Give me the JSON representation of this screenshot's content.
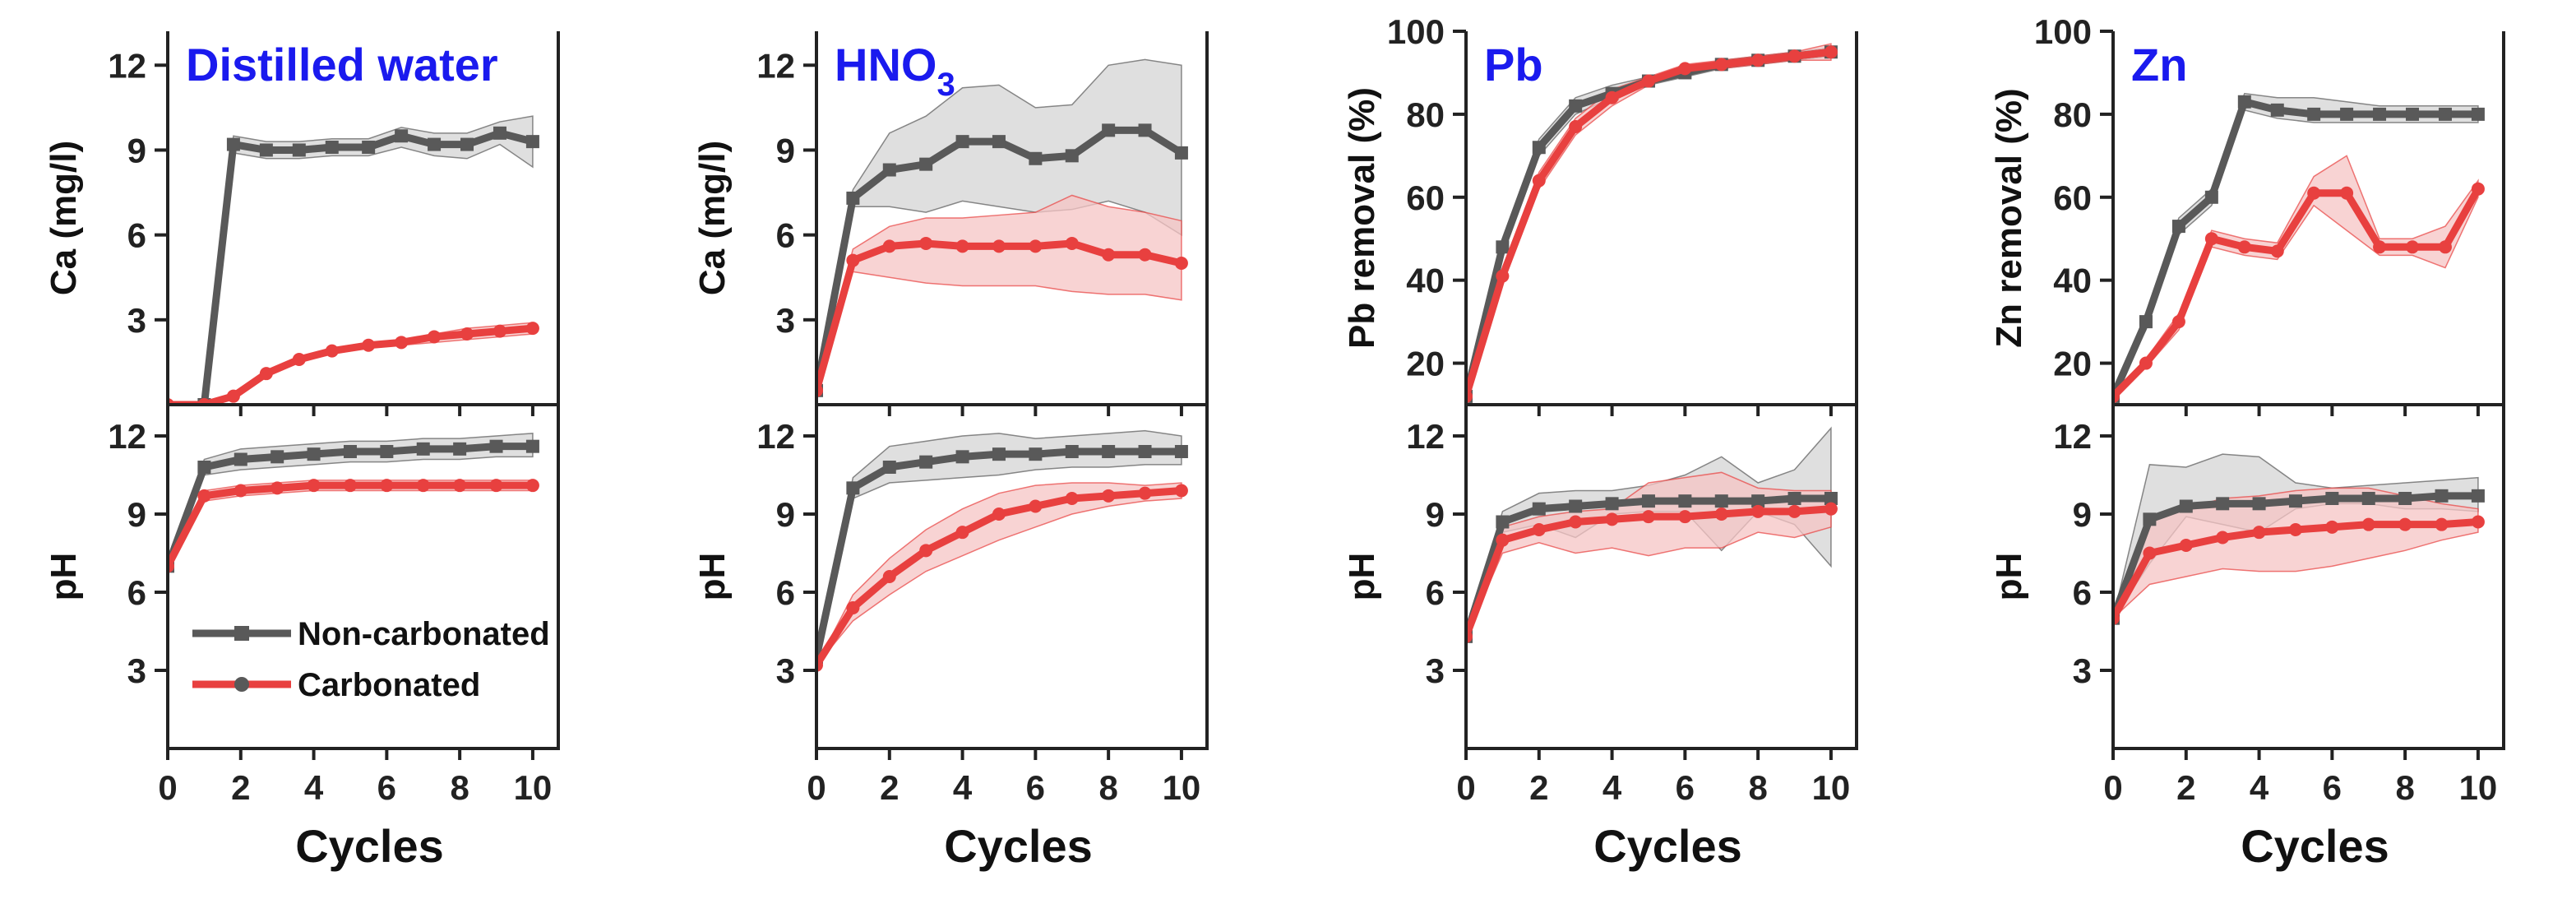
{
  "figure": {
    "xlabel": "Cycles"
  },
  "colors": {
    "noncarb": "#595959",
    "noncarb_band": "#d4d4d4",
    "carb": "#e8403f",
    "carb_band": "#f6c4c4",
    "title": "#1a1aee",
    "axis": "#222222"
  },
  "legend": {
    "items": [
      {
        "label": "Non-carbonated",
        "color": "#595959",
        "marker": "square"
      },
      {
        "label": "Carbonated",
        "color": "#e8403f",
        "marker": "circle"
      }
    ]
  },
  "chart_data": [
    {
      "id": "distilled-ca",
      "type": "line",
      "title": "Distilled water",
      "xlabel": "",
      "ylabel": "Ca (mg/l)",
      "xlim": [
        0,
        10.7
      ],
      "ylim": [
        0,
        13.2
      ],
      "yticks": [
        3,
        6,
        9,
        12
      ],
      "xticks": [
        0,
        2,
        4,
        6,
        8,
        10
      ],
      "show_xticklabels": false,
      "series": [
        {
          "name": "Non-carbonated",
          "x": [
            1,
            1.8,
            2.7,
            3.6,
            4.5,
            5.5,
            6.4,
            7.3,
            8.2,
            9.1,
            10
          ],
          "y": [
            0,
            9.2,
            9.0,
            9.0,
            9.1,
            9.1,
            9.5,
            9.2,
            9.2,
            9.6,
            9.3
          ],
          "band_low": [
            0,
            8.9,
            8.7,
            8.7,
            8.8,
            8.8,
            9.1,
            8.8,
            8.7,
            9.2,
            8.4
          ],
          "band_high": [
            0,
            9.5,
            9.3,
            9.3,
            9.4,
            9.4,
            9.8,
            9.6,
            9.6,
            10.0,
            10.2
          ]
        },
        {
          "name": "Carbonated",
          "x": [
            0,
            1,
            1.8,
            2.7,
            3.6,
            4.5,
            5.5,
            6.4,
            7.3,
            8.2,
            9.1,
            10
          ],
          "y": [
            0,
            0,
            0.3,
            1.1,
            1.6,
            1.9,
            2.1,
            2.2,
            2.4,
            2.5,
            2.6,
            2.7
          ],
          "band_low": [
            0,
            0,
            0.2,
            1.0,
            1.5,
            1.8,
            2.0,
            2.1,
            2.2,
            2.3,
            2.4,
            2.5
          ],
          "band_high": [
            0,
            0,
            0.4,
            1.2,
            1.7,
            2.0,
            2.2,
            2.3,
            2.5,
            2.7,
            2.8,
            2.9
          ]
        }
      ]
    },
    {
      "id": "distilled-ph",
      "type": "line",
      "title": "",
      "xlabel": "Cycles",
      "ylabel": "pH",
      "xlim": [
        0,
        10.7
      ],
      "ylim": [
        0,
        13.2
      ],
      "yticks": [
        3,
        6,
        9,
        12
      ],
      "xticks": [
        0,
        2,
        4,
        6,
        8,
        10
      ],
      "show_xticklabels": true,
      "series": [
        {
          "name": "Non-carbonated",
          "x": [
            0,
            1,
            2,
            3,
            4,
            5,
            6,
            7,
            8,
            9,
            10
          ],
          "y": [
            7.0,
            10.8,
            11.1,
            11.2,
            11.3,
            11.4,
            11.4,
            11.5,
            11.5,
            11.6,
            11.6
          ],
          "band_low": [
            7.0,
            10.5,
            10.7,
            10.8,
            10.9,
            11.0,
            11.0,
            11.1,
            11.1,
            11.2,
            11.2
          ],
          "band_high": [
            7.0,
            11.1,
            11.5,
            11.6,
            11.7,
            11.8,
            11.8,
            11.9,
            11.9,
            12.0,
            12.1
          ]
        },
        {
          "name": "Carbonated",
          "x": [
            0,
            1,
            2,
            3,
            4,
            5,
            6,
            7,
            8,
            9,
            10
          ],
          "y": [
            7.0,
            9.7,
            9.9,
            10.0,
            10.1,
            10.1,
            10.1,
            10.1,
            10.1,
            10.1,
            10.1
          ],
          "band_low": [
            7.0,
            9.5,
            9.7,
            9.8,
            9.9,
            9.9,
            9.9,
            9.9,
            9.9,
            9.9,
            9.9
          ],
          "band_high": [
            7.0,
            9.9,
            10.1,
            10.2,
            10.3,
            10.3,
            10.3,
            10.3,
            10.3,
            10.3,
            10.3
          ]
        }
      ]
    },
    {
      "id": "hno3-ca",
      "type": "line",
      "title": "HNO",
      "title_sub": "3",
      "xlabel": "",
      "ylabel": "Ca (mg/l)",
      "xlim": [
        0,
        10.7
      ],
      "ylim": [
        0,
        13.2
      ],
      "yticks": [
        3,
        6,
        9,
        12
      ],
      "xticks": [
        0,
        2,
        4,
        6,
        8,
        10
      ],
      "show_xticklabels": false,
      "series": [
        {
          "name": "Non-carbonated",
          "x": [
            0,
            1,
            2,
            3,
            4,
            5,
            6,
            7,
            8,
            9,
            10
          ],
          "y": [
            0.5,
            7.3,
            8.3,
            8.5,
            9.3,
            9.3,
            8.7,
            8.8,
            9.7,
            9.7,
            8.9
          ],
          "band_low": [
            0.5,
            7.0,
            7.0,
            6.8,
            7.2,
            7.0,
            6.8,
            6.9,
            7.2,
            6.8,
            6.0
          ],
          "band_high": [
            0.5,
            7.6,
            9.6,
            10.2,
            11.2,
            11.3,
            10.5,
            10.6,
            12.0,
            12.2,
            12.0
          ]
        },
        {
          "name": "Carbonated",
          "x": [
            0,
            1,
            2,
            3,
            4,
            5,
            6,
            7,
            8,
            9,
            10
          ],
          "y": [
            0.5,
            5.1,
            5.6,
            5.7,
            5.6,
            5.6,
            5.6,
            5.7,
            5.3,
            5.3,
            5.0
          ],
          "band_low": [
            0.5,
            4.7,
            4.5,
            4.3,
            4.2,
            4.2,
            4.2,
            4.0,
            3.9,
            3.9,
            3.7
          ],
          "band_high": [
            0.5,
            5.5,
            6.3,
            6.6,
            6.6,
            6.7,
            6.8,
            7.4,
            7.0,
            6.8,
            6.5
          ]
        }
      ]
    },
    {
      "id": "hno3-ph",
      "type": "line",
      "title": "",
      "xlabel": "Cycles",
      "ylabel": "pH",
      "xlim": [
        0,
        10.7
      ],
      "ylim": [
        0,
        13.2
      ],
      "yticks": [
        3,
        6,
        9,
        12
      ],
      "xticks": [
        0,
        2,
        4,
        6,
        8,
        10
      ],
      "show_xticklabels": true,
      "series": [
        {
          "name": "Non-carbonated",
          "x": [
            0,
            1,
            2,
            3,
            4,
            5,
            6,
            7,
            8,
            9,
            10
          ],
          "y": [
            3.5,
            10.0,
            10.8,
            11.0,
            11.2,
            11.3,
            11.3,
            11.4,
            11.4,
            11.4,
            11.4
          ],
          "band_low": [
            3.5,
            9.6,
            10.2,
            10.3,
            10.4,
            10.5,
            10.7,
            10.8,
            10.8,
            10.9,
            10.9
          ],
          "band_high": [
            3.5,
            10.4,
            11.6,
            11.8,
            12.0,
            12.1,
            11.9,
            12.0,
            12.1,
            12.2,
            12.0
          ]
        },
        {
          "name": "Carbonated",
          "x": [
            0,
            1,
            2,
            3,
            4,
            5,
            6,
            7,
            8,
            9,
            10
          ],
          "y": [
            3.2,
            5.4,
            6.6,
            7.6,
            8.3,
            9.0,
            9.3,
            9.6,
            9.7,
            9.8,
            9.9
          ],
          "band_low": [
            3.2,
            4.9,
            5.9,
            6.8,
            7.4,
            8.0,
            8.5,
            9.0,
            9.3,
            9.5,
            9.6
          ],
          "band_high": [
            3.2,
            5.9,
            7.3,
            8.4,
            9.2,
            9.8,
            10.1,
            10.2,
            10.2,
            10.1,
            10.2
          ]
        }
      ]
    },
    {
      "id": "pb-removal",
      "type": "line",
      "title": "Pb",
      "xlabel": "",
      "ylabel": "Pb removal (%)",
      "xlim": [
        0,
        10.7
      ],
      "ylim": [
        10,
        100
      ],
      "yticks": [
        20,
        40,
        60,
        80,
        100
      ],
      "xticks": [
        0,
        2,
        4,
        6,
        8,
        10
      ],
      "show_xticklabels": false,
      "series": [
        {
          "name": "Non-carbonated",
          "x": [
            0,
            1,
            2,
            3,
            4,
            5,
            6,
            7,
            8,
            9,
            10
          ],
          "y": [
            12,
            48,
            72,
            82,
            85,
            88,
            90,
            92,
            93,
            94,
            95
          ],
          "band_low": [
            12,
            46,
            70,
            80,
            84,
            87,
            89,
            91,
            92,
            93,
            94
          ],
          "band_high": [
            12,
            50,
            74,
            84,
            87,
            89,
            91,
            93,
            94,
            95,
            96
          ]
        },
        {
          "name": "Carbonated",
          "x": [
            0,
            1,
            2,
            3,
            4,
            5,
            6,
            7,
            8,
            9,
            10
          ],
          "y": [
            12,
            41,
            64,
            77,
            84,
            88,
            91,
            92,
            93,
            94,
            95
          ],
          "band_low": [
            12,
            39,
            62,
            75,
            82,
            87,
            90,
            91,
            92,
            93,
            93
          ],
          "band_high": [
            12,
            43,
            66,
            79,
            86,
            89,
            92,
            93,
            94,
            95,
            97
          ]
        }
      ]
    },
    {
      "id": "pb-ph",
      "type": "line",
      "title": "",
      "xlabel": "Cycles",
      "ylabel": "pH",
      "xlim": [
        0,
        10.7
      ],
      "ylim": [
        0,
        13.2
      ],
      "yticks": [
        3,
        6,
        9,
        12
      ],
      "xticks": [
        0,
        2,
        4,
        6,
        8,
        10
      ],
      "show_xticklabels": true,
      "series": [
        {
          "name": "Non-carbonated",
          "x": [
            0,
            1,
            2,
            3,
            4,
            5,
            6,
            7,
            8,
            9,
            10
          ],
          "y": [
            4.3,
            8.7,
            9.2,
            9.3,
            9.4,
            9.5,
            9.5,
            9.5,
            9.5,
            9.6,
            9.6
          ],
          "band_low": [
            4.3,
            8.3,
            8.6,
            8.1,
            9.0,
            9.1,
            9.1,
            7.6,
            9.1,
            8.6,
            7.0
          ],
          "band_high": [
            4.3,
            9.1,
            9.8,
            9.9,
            9.9,
            10.1,
            10.5,
            11.2,
            10.2,
            10.7,
            12.3
          ]
        },
        {
          "name": "Carbonated",
          "x": [
            0,
            1,
            2,
            3,
            4,
            5,
            6,
            7,
            8,
            9,
            10
          ],
          "y": [
            4.3,
            8.0,
            8.4,
            8.7,
            8.8,
            8.9,
            8.9,
            9.0,
            9.1,
            9.1,
            9.2
          ],
          "band_low": [
            4.3,
            7.5,
            7.9,
            7.5,
            7.7,
            7.4,
            7.7,
            7.7,
            8.3,
            8.1,
            8.5
          ],
          "band_high": [
            4.3,
            8.5,
            8.9,
            9.1,
            9.2,
            10.2,
            10.4,
            10.6,
            10.0,
            9.9,
            9.9
          ]
        }
      ]
    },
    {
      "id": "zn-removal",
      "type": "line",
      "title": "Zn",
      "xlabel": "",
      "ylabel": "Zn removal (%)",
      "xlim": [
        0,
        10.7
      ],
      "ylim": [
        10,
        100
      ],
      "yticks": [
        20,
        40,
        60,
        80,
        100
      ],
      "xticks": [
        0,
        2,
        4,
        6,
        8,
        10
      ],
      "show_xticklabels": false,
      "series": [
        {
          "name": "Non-carbonated",
          "x": [
            0,
            0.9,
            1.8,
            2.7,
            3.6,
            4.5,
            5.5,
            6.4,
            7.3,
            8.2,
            9.1,
            10
          ],
          "y": [
            12,
            30,
            53,
            60,
            83,
            81,
            80,
            80,
            80,
            80,
            80,
            80
          ],
          "band_low": [
            12,
            28,
            51,
            58,
            81,
            79,
            78,
            78,
            78,
            78,
            78,
            78
          ],
          "band_high": [
            12,
            32,
            55,
            62,
            85,
            84,
            84,
            83,
            82,
            82,
            82,
            82
          ]
        },
        {
          "name": "Carbonated",
          "x": [
            0,
            0.9,
            1.8,
            2.7,
            3.6,
            4.5,
            5.5,
            6.4,
            7.3,
            8.2,
            9.1,
            10
          ],
          "y": [
            12,
            20,
            30,
            50,
            48,
            47,
            61,
            61,
            48,
            48,
            48,
            62
          ],
          "band_low": [
            12,
            19,
            28,
            48,
            46,
            45,
            58,
            52,
            46,
            46,
            43,
            60
          ],
          "band_high": [
            12,
            21,
            32,
            52,
            50,
            49,
            65,
            70,
            50,
            50,
            53,
            64
          ]
        }
      ]
    },
    {
      "id": "zn-ph",
      "type": "line",
      "title": "",
      "xlabel": "Cycles",
      "ylabel": "pH",
      "xlim": [
        0,
        10.7
      ],
      "ylim": [
        0,
        13.2
      ],
      "yticks": [
        3,
        6,
        9,
        12
      ],
      "xticks": [
        0,
        2,
        4,
        6,
        8,
        10
      ],
      "show_xticklabels": true,
      "series": [
        {
          "name": "Non-carbonated",
          "x": [
            0,
            1,
            2,
            3,
            4,
            5,
            6,
            7,
            8,
            9,
            10
          ],
          "y": [
            5.0,
            8.8,
            9.3,
            9.4,
            9.4,
            9.5,
            9.6,
            9.6,
            9.6,
            9.7,
            9.7
          ],
          "band_low": [
            5.0,
            7.1,
            8.9,
            8.6,
            8.3,
            9.2,
            9.4,
            9.4,
            9.2,
            9.2,
            9.1
          ],
          "band_high": [
            5.0,
            10.9,
            10.8,
            11.3,
            11.2,
            10.2,
            10.0,
            10.1,
            10.2,
            10.3,
            10.4
          ]
        },
        {
          "name": "Carbonated",
          "x": [
            0,
            1,
            2,
            3,
            4,
            5,
            6,
            7,
            8,
            9,
            10
          ],
          "y": [
            5.0,
            7.5,
            7.8,
            8.1,
            8.3,
            8.4,
            8.5,
            8.6,
            8.6,
            8.6,
            8.7
          ],
          "band_low": [
            5.0,
            6.3,
            6.6,
            6.9,
            6.8,
            6.8,
            7.0,
            7.3,
            7.6,
            8.0,
            8.3
          ],
          "band_high": [
            5.0,
            8.7,
            9.2,
            9.6,
            9.7,
            9.9,
            10.0,
            10.0,
            9.7,
            9.4,
            9.2
          ]
        }
      ]
    }
  ]
}
